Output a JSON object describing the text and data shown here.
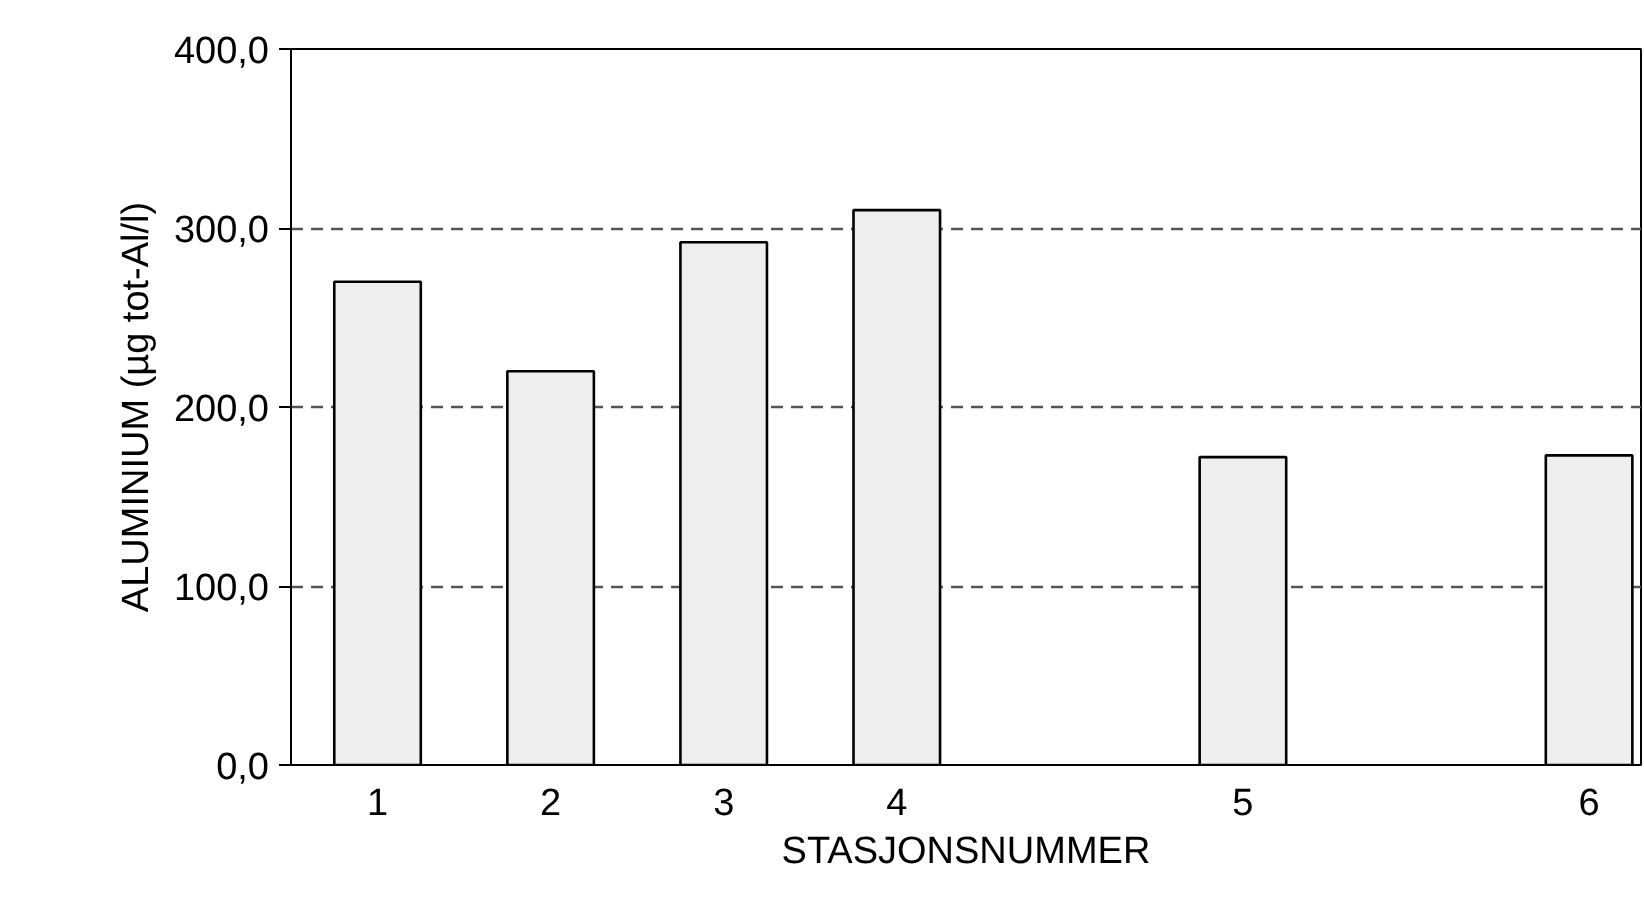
{
  "chart_data": {
    "type": "bar",
    "xlabel": "STASJONSNUMMER",
    "ylabel": "ALUMINIUM (µg tot-Al/l)",
    "categories": [
      "1",
      "2",
      "3",
      "4",
      null,
      "5",
      null,
      "6"
    ],
    "values": [
      270,
      220,
      292,
      310,
      null,
      172,
      null,
      173
    ],
    "color": "#eeeeee",
    "ylim": [
      0,
      400
    ],
    "yticks": [
      {
        "value": 0,
        "label": "0,0"
      },
      {
        "value": 100,
        "label": "100,0"
      },
      {
        "value": 200,
        "label": "200,0"
      },
      {
        "value": 300,
        "label": "300,0"
      },
      {
        "value": 400,
        "label": "400,0"
      }
    ],
    "grid": "y",
    "line_style": "dashed"
  }
}
